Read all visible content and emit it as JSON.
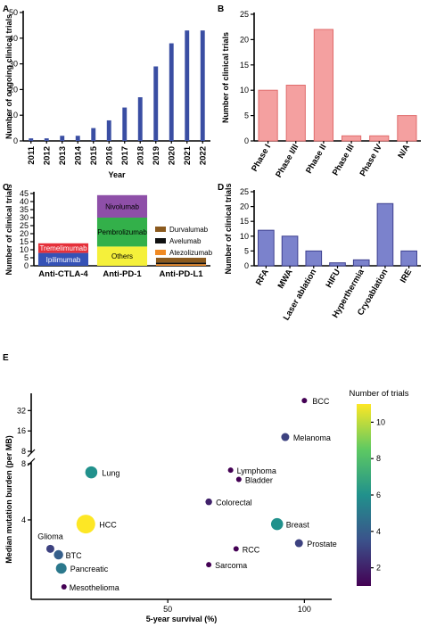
{
  "chart_data": [
    {
      "panel": "A",
      "type": "bar",
      "categories": [
        "2011",
        "2012",
        "2013",
        "2014",
        "2015",
        "2016",
        "2017",
        "2018",
        "2019",
        "2020",
        "2021",
        "2022"
      ],
      "values": [
        1,
        1,
        2,
        2,
        5,
        8,
        13,
        17,
        29,
        38,
        43,
        43
      ],
      "xlabel": "Year",
      "ylabel": "Number of ongoing clinical trials",
      "ylim": [
        0,
        50
      ],
      "yticks": [
        0,
        10,
        20,
        30,
        40,
        50
      ],
      "color": "#3a4ea3"
    },
    {
      "panel": "B",
      "type": "bar",
      "categories": [
        "Phase I",
        "Phase I/II",
        "Phase II",
        "Phase III",
        "Phase IV",
        "N/A"
      ],
      "values": [
        10,
        11,
        22,
        1,
        1,
        5
      ],
      "xlabel": "",
      "ylabel": "Number of clinical trials",
      "ylim": [
        0,
        25
      ],
      "yticks": [
        0,
        5,
        10,
        15,
        20,
        25
      ],
      "color": "#f4a0a0",
      "edge": "#e06c6c"
    },
    {
      "panel": "C",
      "type": "stacked-bar",
      "categories": [
        "Anti-CTLA-4",
        "Anti-PD-1",
        "Anti-PD-L1"
      ],
      "series": [
        {
          "name": "Ipilimumab",
          "values": [
            8,
            0,
            0
          ],
          "color": "#3552b6",
          "label_inside": true
        },
        {
          "name": "Tremelimumab",
          "values": [
            6,
            0,
            0
          ],
          "color": "#e5303a",
          "label_inside": true
        },
        {
          "name": "Others",
          "values": [
            0,
            12,
            0
          ],
          "color": "#f5f03a",
          "label_inside": true
        },
        {
          "name": "Pembrolizumab",
          "values": [
            0,
            18,
            0
          ],
          "color": "#33b04a",
          "label_inside": true
        },
        {
          "name": "Nivolumab",
          "values": [
            0,
            14,
            0
          ],
          "color": "#8e4fa8",
          "label_inside": true
        },
        {
          "name": "Atezolizumab",
          "values": [
            0,
            0,
            1
          ],
          "color": "#f08a24",
          "legend": true
        },
        {
          "name": "Avelumab",
          "values": [
            0,
            0,
            1
          ],
          "color": "#111111",
          "legend": true
        },
        {
          "name": "Durvalumab",
          "values": [
            0,
            0,
            3
          ],
          "color": "#8b5a1e",
          "legend": true
        }
      ],
      "xlabel": "",
      "ylabel": "Number of clinical trials",
      "ylim": [
        0,
        45
      ],
      "yticks": [
        0,
        5,
        10,
        15,
        20,
        25,
        30,
        35,
        40,
        45
      ],
      "legend_order": [
        "Durvalumab",
        "Avelumab",
        "Atezolizumab"
      ],
      "legend_position": "right"
    },
    {
      "panel": "D",
      "type": "bar",
      "categories": [
        "RFA",
        "MWA",
        "Laser ablation",
        "HIFU",
        "Hyperthermia",
        "Cryoablation",
        "IRE"
      ],
      "values": [
        12,
        10,
        5,
        1,
        2,
        21,
        5
      ],
      "xlabel": "",
      "ylabel": "Number of clinical trials",
      "ylim": [
        0,
        25
      ],
      "yticks": [
        0,
        5,
        10,
        15,
        20,
        25
      ],
      "color": "#7b82cc",
      "edge": "#3d3f8f"
    },
    {
      "panel": "E",
      "type": "scatter",
      "xlabel": "5-year survival (%)",
      "ylabel": "Median mutation burden (per MB)",
      "xlim": [
        0,
        110
      ],
      "xticks": [
        50,
        100
      ],
      "yticks_lower": [
        4,
        8
      ],
      "yticks_upper": [
        8,
        16,
        32
      ],
      "y_scale": "broken-log2",
      "points": [
        {
          "name": "BCC",
          "x": 100,
          "y": 45,
          "trials": 1
        },
        {
          "name": "Melanoma",
          "x": 93,
          "y": 13,
          "trials": 3
        },
        {
          "name": "Lung",
          "x": 22,
          "y": 7.2,
          "trials": 6
        },
        {
          "name": "Lymphoma",
          "x": 73,
          "y": 7.4,
          "trials": 1
        },
        {
          "name": "Bladder",
          "x": 76,
          "y": 6.6,
          "trials": 1
        },
        {
          "name": "Colorectal",
          "x": 65,
          "y": 5.0,
          "trials": 2
        },
        {
          "name": "HCC",
          "x": 20,
          "y": 3.8,
          "trials": 11
        },
        {
          "name": "Breast",
          "x": 90,
          "y": 3.8,
          "trials": 6
        },
        {
          "name": "Prostate",
          "x": 98,
          "y": 3.0,
          "trials": 3
        },
        {
          "name": "RCC",
          "x": 75,
          "y": 2.8,
          "trials": 1
        },
        {
          "name": "Glioma",
          "x": 7,
          "y": 2.8,
          "trials": 3
        },
        {
          "name": "BTC",
          "x": 10,
          "y": 2.6,
          "trials": 4
        },
        {
          "name": "Pancreatic",
          "x": 11,
          "y": 2.2,
          "trials": 5
        },
        {
          "name": "Sarcoma",
          "x": 65,
          "y": 2.3,
          "trials": 1
        },
        {
          "name": "Mesothelioma",
          "x": 12,
          "y": 1.75,
          "trials": 1
        }
      ],
      "colorbar": {
        "title": "Number of trials",
        "ticks": [
          2,
          4,
          6,
          8,
          10
        ],
        "range": [
          1,
          11
        ],
        "colormap": "viridis"
      }
    }
  ]
}
